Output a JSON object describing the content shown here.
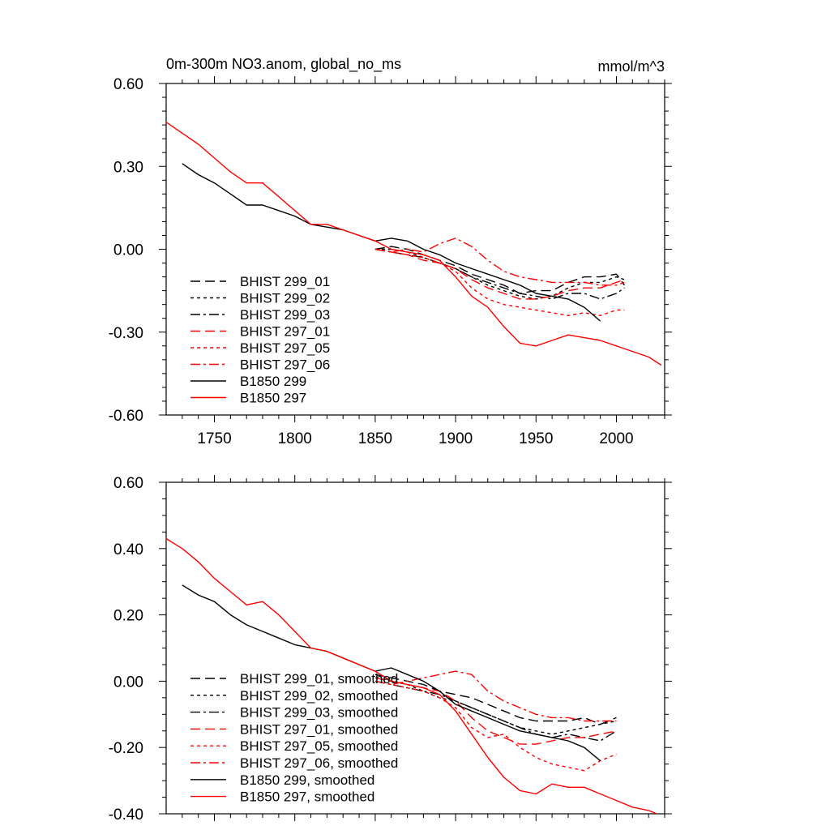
{
  "chart_data": [
    {
      "type": "line",
      "title": "0m-300m NO3.anom, global_no_ms",
      "units": "mmol/m^3",
      "xlim": [
        1720,
        2030
      ],
      "ylim": [
        -0.6,
        0.6
      ],
      "x_ticks": [
        1750,
        1800,
        1850,
        1900,
        1950,
        2000
      ],
      "x_tick_labels": [
        "1750",
        "1800",
        "1850",
        "1900",
        "1950",
        "2000"
      ],
      "y_ticks": [
        0.6,
        0.3,
        0.0,
        -0.3,
        -0.6
      ],
      "y_tick_labels": [
        "0.60",
        "0.30",
        "0.00",
        "-0.30",
        "-0.60"
      ],
      "legend_placement": "bottom-left",
      "series": [
        {
          "name": "BHIST 299_01",
          "color": "#000000",
          "dash": "dashed",
          "x": [
            1850,
            1860,
            1870,
            1880,
            1890,
            1900,
            1910,
            1920,
            1930,
            1940,
            1950,
            1960,
            1970,
            1980,
            1990,
            2000,
            2005
          ],
          "y": [
            0.0,
            0.01,
            0.0,
            -0.02,
            -0.04,
            -0.06,
            -0.09,
            -0.11,
            -0.13,
            -0.16,
            -0.15,
            -0.15,
            -0.12,
            -0.1,
            -0.1,
            -0.09,
            -0.13
          ]
        },
        {
          "name": "BHIST 299_02",
          "color": "#000000",
          "dash": "dotted",
          "x": [
            1850,
            1860,
            1870,
            1880,
            1890,
            1900,
            1910,
            1920,
            1930,
            1940,
            1950,
            1960,
            1970,
            1980,
            1990,
            2000,
            2005
          ],
          "y": [
            0.0,
            0.0,
            -0.01,
            -0.03,
            -0.05,
            -0.07,
            -0.1,
            -0.13,
            -0.15,
            -0.17,
            -0.18,
            -0.17,
            -0.14,
            -0.12,
            -0.12,
            -0.1,
            -0.11
          ]
        },
        {
          "name": "BHIST 299_03",
          "color": "#000000",
          "dash": "dashdot",
          "x": [
            1850,
            1860,
            1870,
            1880,
            1890,
            1900,
            1910,
            1920,
            1930,
            1940,
            1950,
            1960,
            1970,
            1980,
            1990,
            2000,
            2005
          ],
          "y": [
            0.0,
            -0.01,
            -0.02,
            -0.03,
            -0.05,
            -0.07,
            -0.1,
            -0.12,
            -0.14,
            -0.16,
            -0.17,
            -0.18,
            -0.16,
            -0.16,
            -0.18,
            -0.16,
            -0.14
          ]
        },
        {
          "name": "BHIST 297_01",
          "color": "#ff0000",
          "dash": "dashed",
          "x": [
            1850,
            1860,
            1870,
            1880,
            1890,
            1900,
            1910,
            1920,
            1930,
            1940,
            1950,
            1960,
            1970,
            1980,
            1990,
            2000,
            2005
          ],
          "y": [
            0.0,
            -0.01,
            -0.02,
            -0.04,
            -0.05,
            -0.07,
            -0.11,
            -0.14,
            -0.16,
            -0.18,
            -0.18,
            -0.17,
            -0.15,
            -0.14,
            -0.14,
            -0.12,
            -0.11
          ]
        },
        {
          "name": "BHIST 297_05",
          "color": "#ff0000",
          "dash": "dotted",
          "x": [
            1850,
            1860,
            1870,
            1880,
            1890,
            1900,
            1910,
            1920,
            1930,
            1940,
            1950,
            1960,
            1970,
            1980,
            1990,
            2000,
            2005
          ],
          "y": [
            0.0,
            -0.01,
            -0.02,
            -0.03,
            -0.05,
            -0.08,
            -0.14,
            -0.18,
            -0.2,
            -0.21,
            -0.22,
            -0.23,
            -0.24,
            -0.23,
            -0.24,
            -0.22,
            -0.22
          ]
        },
        {
          "name": "BHIST 297_06",
          "color": "#ff0000",
          "dash": "dashdot",
          "x": [
            1850,
            1860,
            1870,
            1880,
            1890,
            1900,
            1910,
            1920,
            1930,
            1940,
            1950,
            1960,
            1970,
            1980,
            1990,
            2000,
            2005
          ],
          "y": [
            0.0,
            -0.01,
            0.0,
            -0.01,
            0.02,
            0.04,
            0.01,
            -0.04,
            -0.08,
            -0.1,
            -0.11,
            -0.12,
            -0.12,
            -0.12,
            -0.13,
            -0.13,
            -0.12
          ]
        },
        {
          "name": "B1850 299",
          "color": "#000000",
          "dash": "solid",
          "x": [
            1730,
            1740,
            1750,
            1760,
            1770,
            1780,
            1790,
            1800,
            1810,
            1820,
            1830,
            1840,
            1850,
            1860,
            1870,
            1880,
            1890,
            1900,
            1910,
            1920,
            1930,
            1940,
            1950,
            1960,
            1970,
            1980,
            1990
          ],
          "y": [
            0.31,
            0.27,
            0.24,
            0.2,
            0.16,
            0.16,
            0.14,
            0.12,
            0.09,
            0.08,
            0.07,
            0.05,
            0.03,
            0.04,
            0.03,
            0.0,
            -0.02,
            -0.05,
            -0.07,
            -0.09,
            -0.11,
            -0.13,
            -0.16,
            -0.17,
            -0.18,
            -0.21,
            -0.26
          ]
        },
        {
          "name": "B1850 297",
          "color": "#ff0000",
          "dash": "solid",
          "x": [
            1720,
            1730,
            1740,
            1750,
            1760,
            1770,
            1780,
            1790,
            1800,
            1810,
            1820,
            1830,
            1840,
            1850,
            1860,
            1870,
            1880,
            1890,
            1900,
            1910,
            1920,
            1930,
            1940,
            1950,
            1960,
            1970,
            1980,
            1990,
            2000,
            2010,
            2020,
            2028
          ],
          "y": [
            0.46,
            0.42,
            0.38,
            0.33,
            0.28,
            0.24,
            0.24,
            0.19,
            0.14,
            0.09,
            0.09,
            0.07,
            0.05,
            0.03,
            0.0,
            -0.01,
            -0.02,
            -0.04,
            -0.1,
            -0.17,
            -0.21,
            -0.28,
            -0.34,
            -0.35,
            -0.33,
            -0.31,
            -0.32,
            -0.33,
            -0.35,
            -0.37,
            -0.39,
            -0.42
          ]
        }
      ]
    },
    {
      "type": "line",
      "title": "",
      "xlim": [
        1720,
        2030
      ],
      "ylim": [
        -0.4,
        0.6
      ],
      "x_ticks": [
        1750,
        1800,
        1850,
        1900,
        1950,
        2000
      ],
      "y_ticks": [
        0.6,
        0.4,
        0.2,
        0.0,
        -0.2,
        -0.4
      ],
      "y_tick_labels": [
        "0.60",
        "0.40",
        "0.20",
        "0.00",
        "-0.20",
        "-0.40"
      ],
      "legend_placement": "bottom-left",
      "series": [
        {
          "name": "BHIST 299_01, smoothed",
          "color": "#000000",
          "dash": "dashed",
          "x": [
            1850,
            1860,
            1870,
            1880,
            1890,
            1900,
            1910,
            1920,
            1930,
            1940,
            1950,
            1960,
            1970,
            1980,
            1990,
            2000
          ],
          "y": [
            0.02,
            0.01,
            0.0,
            -0.01,
            -0.03,
            -0.04,
            -0.05,
            -0.07,
            -0.09,
            -0.11,
            -0.12,
            -0.12,
            -0.12,
            -0.11,
            -0.13,
            -0.11
          ]
        },
        {
          "name": "BHIST 299_02, smoothed",
          "color": "#000000",
          "dash": "dotted",
          "x": [
            1850,
            1860,
            1870,
            1880,
            1890,
            1900,
            1910,
            1920,
            1930,
            1940,
            1950,
            1960,
            1970,
            1980,
            1990,
            2000
          ],
          "y": [
            0.01,
            0.0,
            -0.01,
            -0.03,
            -0.05,
            -0.06,
            -0.08,
            -0.1,
            -0.12,
            -0.14,
            -0.15,
            -0.16,
            -0.15,
            -0.14,
            -0.13,
            -0.12
          ]
        },
        {
          "name": "BHIST 299_03, smoothed",
          "color": "#000000",
          "dash": "dashdot",
          "x": [
            1850,
            1860,
            1870,
            1880,
            1890,
            1900,
            1910,
            1920,
            1930,
            1940,
            1950,
            1960,
            1970,
            1980,
            1990,
            2000
          ],
          "y": [
            0.0,
            -0.01,
            -0.02,
            -0.03,
            -0.04,
            -0.06,
            -0.08,
            -0.1,
            -0.12,
            -0.14,
            -0.16,
            -0.17,
            -0.16,
            -0.17,
            -0.18,
            -0.15
          ]
        },
        {
          "name": "BHIST 297_01, smoothed",
          "color": "#ff0000",
          "dash": "dashed",
          "x": [
            1850,
            1860,
            1870,
            1880,
            1890,
            1900,
            1910,
            1920,
            1930,
            1940,
            1950,
            1960,
            1970,
            1980,
            1990,
            2000
          ],
          "y": [
            0.01,
            0.0,
            -0.01,
            -0.02,
            -0.03,
            -0.06,
            -0.11,
            -0.15,
            -0.17,
            -0.19,
            -0.19,
            -0.18,
            -0.17,
            -0.17,
            -0.16,
            -0.15
          ]
        },
        {
          "name": "BHIST 297_05, smoothed",
          "color": "#ff0000",
          "dash": "dotted",
          "x": [
            1850,
            1860,
            1870,
            1880,
            1890,
            1900,
            1910,
            1920,
            1930,
            1940,
            1950,
            1960,
            1970,
            1980,
            1990,
            2000
          ],
          "y": [
            0.0,
            -0.01,
            -0.02,
            -0.03,
            -0.05,
            -0.08,
            -0.14,
            -0.17,
            -0.16,
            -0.2,
            -0.23,
            -0.25,
            -0.26,
            -0.27,
            -0.24,
            -0.22
          ]
        },
        {
          "name": "BHIST 297_06, smoothed",
          "color": "#ff0000",
          "dash": "dashdot",
          "x": [
            1850,
            1860,
            1870,
            1880,
            1890,
            1900,
            1910,
            1920,
            1930,
            1940,
            1950,
            1960,
            1970,
            1980,
            1990,
            2000
          ],
          "y": [
            0.0,
            -0.01,
            0.0,
            0.01,
            0.02,
            0.03,
            0.02,
            -0.03,
            -0.06,
            -0.08,
            -0.1,
            -0.11,
            -0.11,
            -0.12,
            -0.12,
            -0.12
          ]
        },
        {
          "name": "B1850 299, smoothed",
          "color": "#000000",
          "dash": "solid",
          "x": [
            1730,
            1740,
            1750,
            1760,
            1770,
            1780,
            1790,
            1800,
            1810,
            1820,
            1830,
            1840,
            1850,
            1860,
            1870,
            1880,
            1890,
            1900,
            1910,
            1920,
            1930,
            1940,
            1950,
            1960,
            1970,
            1980,
            1990
          ],
          "y": [
            0.29,
            0.26,
            0.24,
            0.2,
            0.17,
            0.15,
            0.13,
            0.11,
            0.1,
            0.09,
            0.07,
            0.05,
            0.03,
            0.04,
            0.02,
            0.0,
            -0.03,
            -0.07,
            -0.09,
            -0.11,
            -0.13,
            -0.15,
            -0.16,
            -0.17,
            -0.18,
            -0.2,
            -0.24
          ]
        },
        {
          "name": "B1850 297, smoothed",
          "color": "#ff0000",
          "dash": "solid",
          "x": [
            1720,
            1730,
            1740,
            1750,
            1760,
            1770,
            1780,
            1790,
            1800,
            1810,
            1820,
            1830,
            1840,
            1850,
            1860,
            1870,
            1880,
            1890,
            1900,
            1910,
            1920,
            1930,
            1940,
            1950,
            1960,
            1970,
            1980,
            1990,
            2000,
            2010,
            2020,
            2025
          ],
          "y": [
            0.43,
            0.4,
            0.36,
            0.31,
            0.27,
            0.23,
            0.24,
            0.2,
            0.15,
            0.1,
            0.09,
            0.07,
            0.05,
            0.03,
            0.0,
            -0.01,
            -0.02,
            -0.04,
            -0.09,
            -0.16,
            -0.23,
            -0.29,
            -0.33,
            -0.34,
            -0.31,
            -0.32,
            -0.32,
            -0.34,
            -0.36,
            -0.38,
            -0.39,
            -0.4
          ]
        }
      ]
    }
  ]
}
